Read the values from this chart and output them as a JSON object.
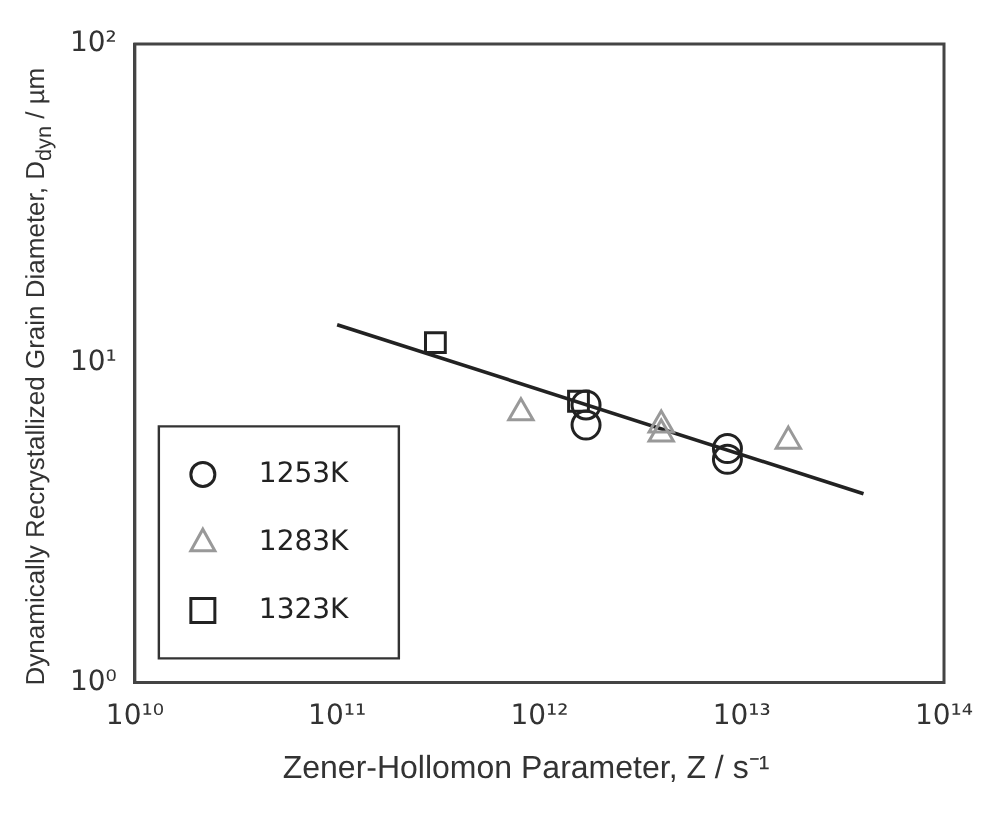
{
  "chart_data": {
    "type": "scatter",
    "xlabel": "Zener-Hollomon Parameter, Z / s⁻¹",
    "ylabel": "Dynamically Recrystallized Grain Diameter, D$_{dyn}$ / µm",
    "log": "xy",
    "xlim": [
      10000000000.0,
      100000000000000.0
    ],
    "ylim": [
      1,
      100
    ],
    "xticks": [
      {
        "value": 10000000000.0,
        "label": "10¹⁰"
      },
      {
        "value": 100000000000.0,
        "label": "10¹¹"
      },
      {
        "value": 1000000000000.0,
        "label": "10¹²"
      },
      {
        "value": 10000000000000.0,
        "label": "10¹³"
      },
      {
        "value": 100000000000000.0,
        "label": "10¹⁴"
      }
    ],
    "yticks": [
      {
        "value": 1,
        "label": "10⁰"
      },
      {
        "value": 10,
        "label": "10¹"
      },
      {
        "value": 100,
        "label": "10²"
      }
    ],
    "grid": false,
    "legend": "bottom left",
    "series": [
      {
        "name": "1253K",
        "marker": "circle",
        "color": "#222222",
        "x": [
          1700000000000.0,
          1700000000000.0,
          8500000000000.0,
          8500000000000.0
        ],
        "values": [
          7.4,
          6.4,
          5.4,
          5.0
        ]
      },
      {
        "name": "1283K",
        "marker": "triangle",
        "color": "#999999",
        "x": [
          810000000000.0,
          4000000000000.0,
          4000000000000.0,
          17000000000000.0
        ],
        "values": [
          7.0,
          6.4,
          6.0,
          5.7
        ]
      },
      {
        "name": "1323K",
        "marker": "square",
        "color": "#222222",
        "x": [
          306000000000.0,
          1560000000000.0
        ],
        "values": [
          11.6,
          7.6
        ]
      },
      {
        "type": "line",
        "marker": "none",
        "color": "#222222",
        "x": [
          100000000000.0,
          40000000000000.0
        ],
        "values": [
          13.2,
          3.9
        ]
      }
    ]
  }
}
